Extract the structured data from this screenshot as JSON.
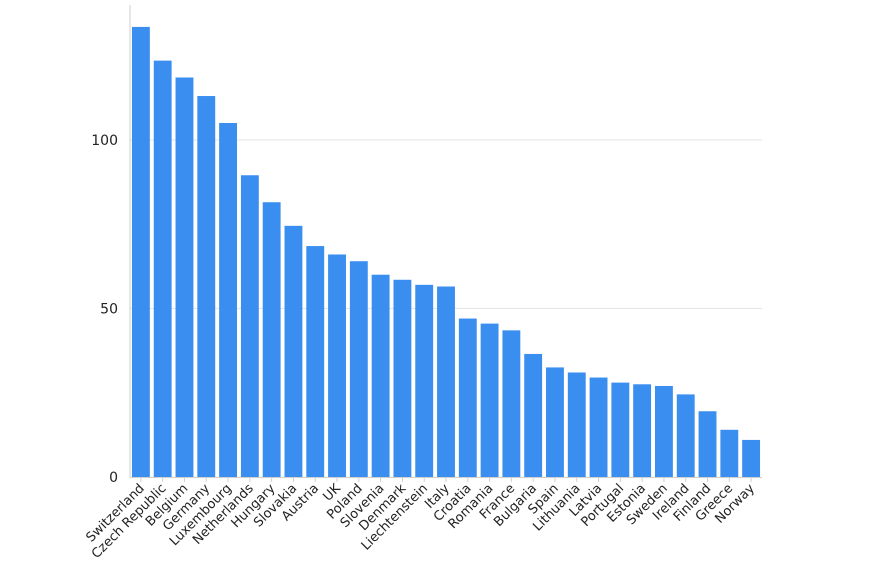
{
  "chart_data": {
    "type": "bar",
    "title": "",
    "xlabel": "",
    "ylabel": "",
    "ylim": [
      0,
      140
    ],
    "yticks": [
      0,
      50,
      100
    ],
    "grid": true,
    "bar_color": "#3a8ef0",
    "categories": [
      "Switzerland",
      "Czech Republic",
      "Belgium",
      "Germany",
      "Luxembourg",
      "Netherlands",
      "Hungary",
      "Slovakia",
      "Austria",
      "UK",
      "Poland",
      "Slovenia",
      "Denmark",
      "Liechtenstein",
      "Italy",
      "Croatia",
      "Romania",
      "France",
      "Bulgaria",
      "Spain",
      "Lithuania",
      "Latvia",
      "Portugal",
      "Estonia",
      "Sweden",
      "Ireland",
      "Finland",
      "Greece",
      "Norway"
    ],
    "values": [
      133.5,
      123.5,
      118.5,
      113,
      105,
      89.5,
      81.5,
      74.5,
      68.5,
      66,
      64,
      60,
      58.5,
      57,
      56.5,
      47,
      45.5,
      43.5,
      36.5,
      32.5,
      31,
      29.5,
      28,
      27.5,
      27,
      24.5,
      19.5,
      14,
      11
    ]
  }
}
